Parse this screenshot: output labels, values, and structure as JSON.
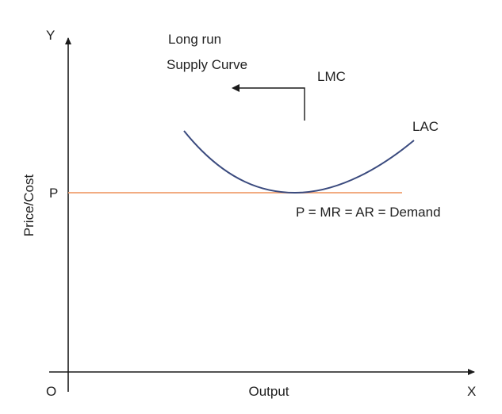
{
  "colors": {
    "axis": "#1a1a1a",
    "lac_curve": "#3a4a7e",
    "price_line": "#f0a070",
    "arrow": "#1a1a1a"
  },
  "axes": {
    "y_letter": "Y",
    "x_letter": "X",
    "origin": "O",
    "y_label": "Price/Cost",
    "x_label": "Output",
    "p_tick": "P"
  },
  "labels": {
    "supply_curve_line1": "Long run",
    "supply_curve_line2": "Supply Curve",
    "lmc": "LMC",
    "lac": "LAC",
    "demand": "P = MR = AR = Demand"
  },
  "icons": [
    "arrow-left-icon"
  ]
}
